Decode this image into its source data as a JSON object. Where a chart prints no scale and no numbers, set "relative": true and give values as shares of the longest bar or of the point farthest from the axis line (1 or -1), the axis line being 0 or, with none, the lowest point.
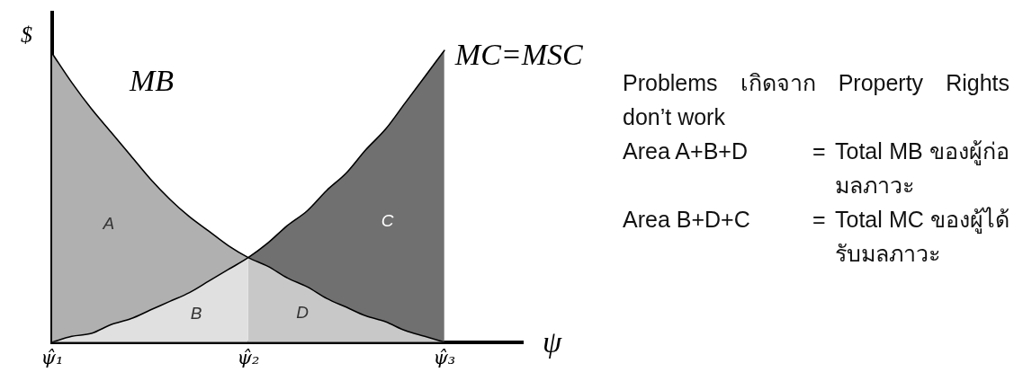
{
  "chart_data": {
    "type": "line",
    "relative": true,
    "xlabel": "ψ",
    "ylabel": "$",
    "categories": [
      "ψ̂₁",
      null,
      null,
      null,
      null,
      null,
      null,
      null,
      null,
      null,
      "ψ̂₂",
      null,
      null,
      null,
      null,
      null,
      null,
      null,
      null,
      null,
      "ψ̂₃"
    ],
    "series": [
      {
        "name": "MB",
        "type": "line",
        "color": "#000000",
        "values": [
          0.99,
          0.89,
          0.8,
          0.72,
          0.64,
          0.56,
          0.49,
          0.43,
          0.38,
          0.33,
          0.29,
          0.26,
          0.22,
          0.19,
          0.15,
          0.12,
          0.09,
          0.07,
          0.04,
          0.02,
          0
        ]
      },
      {
        "name": "MC=MSC",
        "type": "line",
        "color": "#000000",
        "values": [
          0,
          0.02,
          0.03,
          0.06,
          0.08,
          0.11,
          0.14,
          0.17,
          0.21,
          0.25,
          0.29,
          0.34,
          0.4,
          0.45,
          0.52,
          0.58,
          0.66,
          0.73,
          0.82,
          0.91,
          1
        ]
      },
      {
        "name": "A",
        "type": "area",
        "color": "#b0b0b0",
        "values": [
          0.99,
          0.89,
          0.8,
          0.72,
          0.64,
          0.56,
          0.49,
          0.43,
          0.38,
          0.33,
          0.29,
          null,
          null,
          null,
          null,
          null,
          null,
          null,
          null,
          null,
          null
        ]
      },
      {
        "name": "B",
        "type": "area",
        "color": "#e0e0e0",
        "values": [
          0,
          0.02,
          0.03,
          0.06,
          0.08,
          0.11,
          0.14,
          0.17,
          0.21,
          0.25,
          0.29,
          null,
          null,
          null,
          null,
          null,
          null,
          null,
          null,
          null,
          null
        ]
      },
      {
        "name": "C",
        "type": "area",
        "color": "#707070",
        "values": [
          null,
          null,
          null,
          null,
          null,
          null,
          null,
          null,
          null,
          null,
          0.29,
          0.34,
          0.4,
          0.45,
          0.52,
          0.58,
          0.66,
          0.73,
          0.82,
          0.91,
          1
        ]
      },
      {
        "name": "D",
        "type": "area",
        "color": "#c8c8c8",
        "values": [
          null,
          null,
          null,
          null,
          null,
          null,
          null,
          null,
          null,
          null,
          0.29,
          0.26,
          0.22,
          0.19,
          0.15,
          0.12,
          0.09,
          0.07,
          0.04,
          0.02,
          0
        ]
      }
    ],
    "annotations": [
      "Problems เกิดจาก Property Rights don’t work",
      "Area A+B+D",
      "=",
      "Total MB ของผู้ก่อมลภาวะ",
      "Area B+D+C",
      "=",
      "Total MC ของผู้ได้รับมลภาวะ"
    ]
  }
}
